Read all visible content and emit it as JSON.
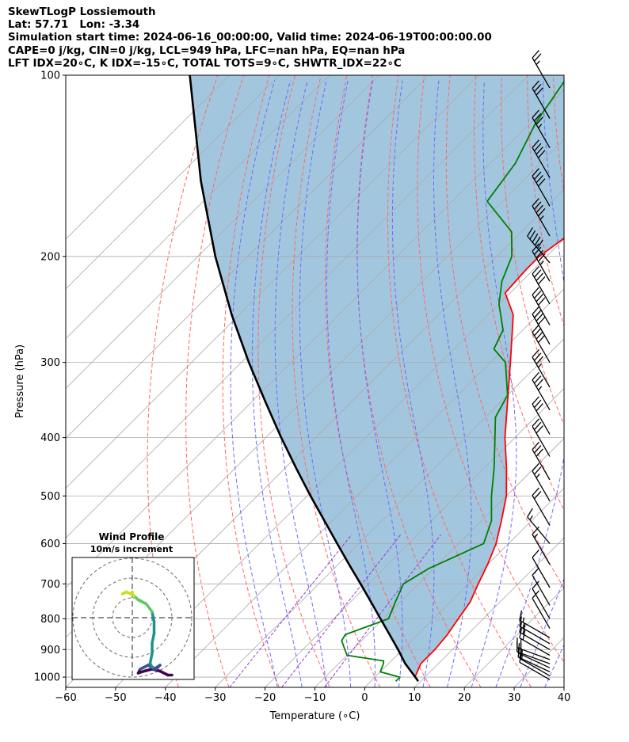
{
  "header": {
    "lines": [
      "SkewTLogP Lossiemouth",
      "Lat: 57.71   Lon: -3.34",
      "Simulation start time: 2024-06-16_00:00:00, Valid time: 2024-06-19T00:00:00.00",
      "CAPE=0 j/kg, CIN=0 j/kg, LCL=949 hPa, LFC=nan hPa, EQ=nan hPa",
      "LFT IDX=20∘C, K IDX=-15∘C, TOTAL TOTS=9∘C, SHWTR_IDX=22∘C"
    ]
  },
  "colors": {
    "temperature": "#ff0000",
    "dewpoint": "#008000",
    "parcel": "#000000",
    "cape_shading": "#a3c6df",
    "dry_adiabat": "#ff6666",
    "moist_adiabat": "#6b6bff",
    "mixing_ratio": "#9b3ad6",
    "isotherm": "#aaaaaa",
    "hodo_palette": [
      "#440154",
      "#3b528b",
      "#21918c",
      "#5ec962",
      "#c8e020"
    ]
  },
  "chart_data": [
    {
      "type": "line",
      "subtype": "skew-t-log-p",
      "xlabel": "Temperature (∘C)",
      "ylabel": "Pressure (hPa)",
      "xlim": [
        -60,
        40
      ],
      "ylim": [
        1040,
        100
      ],
      "yscale": "log",
      "xticks": [
        "−60",
        "−50",
        "−40",
        "−30",
        "−20",
        "−10",
        "0",
        "10",
        "20",
        "30",
        "40"
      ],
      "yticks": [
        100,
        200,
        300,
        400,
        500,
        600,
        700,
        800,
        900,
        1000
      ],
      "series": [
        {
          "key": "temperature",
          "points": [
            [
              1016,
              9.5
            ],
            [
              1000,
              8.0
            ],
            [
              950,
              6.5
            ],
            [
              900,
              6.5
            ],
            [
              850,
              6.0
            ],
            [
              800,
              5.0
            ],
            [
              750,
              4.0
            ],
            [
              700,
              2.0
            ],
            [
              650,
              0
            ],
            [
              600,
              -2.5
            ],
            [
              550,
              -6.0
            ],
            [
              500,
              -10.0
            ],
            [
              450,
              -15.5
            ],
            [
              400,
              -22.0
            ],
            [
              350,
              -28.5
            ],
            [
              300,
              -36.0
            ],
            [
              250,
              -45.0
            ],
            [
              230,
              -51.0
            ],
            [
              210,
              -51.5
            ],
            [
              200,
              -51.5
            ],
            [
              185,
              -50.0
            ],
            [
              170,
              -50.5
            ],
            [
              150,
              -53.0
            ],
            [
              130,
              -56.0
            ],
            [
              115,
              -58.5
            ],
            [
              100,
              -61.0
            ]
          ]
        },
        {
          "key": "dewpoint",
          "points": [
            [
              1016,
              5.0
            ],
            [
              1000,
              5.0
            ],
            [
              980,
              0
            ],
            [
              950,
              -1.0
            ],
            [
              940,
              -1.5
            ],
            [
              920,
              -10.0
            ],
            [
              870,
              -14.0
            ],
            [
              850,
              -14.5
            ],
            [
              800,
              -9.0
            ],
            [
              750,
              -11.0
            ],
            [
              700,
              -13.0
            ],
            [
              660,
              -11.0
            ],
            [
              600,
              -5.0
            ],
            [
              550,
              -8.0
            ],
            [
              500,
              -13.0
            ],
            [
              450,
              -18.0
            ],
            [
              400,
              -24.0
            ],
            [
              370,
              -28.0
            ],
            [
              340,
              -30.0
            ],
            [
              300,
              -37.0
            ],
            [
              285,
              -42.0
            ],
            [
              265,
              -44.0
            ],
            [
              240,
              -50.0
            ],
            [
              220,
              -54.0
            ],
            [
              200,
              -57.0
            ],
            [
              182,
              -62.0
            ],
            [
              162,
              -73.0
            ],
            [
              140,
              -75.0
            ],
            [
              120,
              -79.0
            ],
            [
              100,
              -82.0
            ]
          ]
        },
        {
          "key": "parcel",
          "points": [
            [
              1016,
              9.5
            ],
            [
              1000,
              8.1
            ],
            [
              970,
              5.3
            ],
            [
              949,
              3.3
            ],
            [
              900,
              -0.9
            ],
            [
              850,
              -5.6
            ],
            [
              800,
              -10.6
            ],
            [
              750,
              -15.9
            ],
            [
              700,
              -21.6
            ],
            [
              650,
              -27.8
            ],
            [
              600,
              -34.4
            ],
            [
              550,
              -41.5
            ],
            [
              500,
              -49.3
            ],
            [
              450,
              -57.7
            ],
            [
              400,
              -66.9
            ],
            [
              350,
              -77.0
            ],
            [
              300,
              -88.5
            ],
            [
              250,
              -101.5
            ],
            [
              200,
              -116.5
            ],
            [
              150,
              -134.5
            ],
            [
              100,
              -158.0
            ]
          ]
        }
      ],
      "wind_barbs": {
        "pressures": [
          1010,
          995,
          980,
          965,
          950,
          935,
          920,
          900,
          880,
          860,
          830,
          800,
          760,
          710,
          650,
          600,
          560,
          510,
          470,
          430,
          395,
          360,
          330,
          300,
          280,
          260,
          240,
          220,
          205,
          185,
          165,
          148,
          132,
          118,
          105
        ],
        "speeds_kt": [
          10,
          10,
          15,
          15,
          20,
          20,
          20,
          20,
          15,
          15,
          10,
          10,
          10,
          10,
          15,
          15,
          20,
          25,
          30,
          30,
          30,
          35,
          35,
          40,
          40,
          40,
          40,
          45,
          50,
          45,
          40,
          40,
          35,
          30,
          25
        ],
        "directions_deg": [
          300,
          300,
          295,
          295,
          290,
          290,
          300,
          300,
          300,
          300,
          330,
          330,
          330,
          330,
          330,
          320,
          330,
          330,
          330,
          330,
          330,
          330,
          330,
          330,
          330,
          330,
          330,
          330,
          320,
          330,
          330,
          330,
          330,
          330,
          330
        ]
      }
    },
    {
      "type": "line",
      "subtype": "hodograph",
      "title": "Wind Profile",
      "subtitle": "10m/s increment",
      "ring_increment_ms": 10,
      "rings": 3,
      "points_ms": [
        [
          20,
          -29
        ],
        [
          18,
          -29
        ],
        [
          14,
          -27
        ],
        [
          10,
          -26
        ],
        [
          6,
          -27
        ],
        [
          3,
          -28
        ],
        [
          4,
          -26
        ],
        [
          8,
          -24
        ],
        [
          11,
          -26
        ],
        [
          14,
          -24
        ],
        [
          12,
          -26
        ],
        [
          10,
          -25
        ],
        [
          9,
          -23
        ],
        [
          10,
          -18
        ],
        [
          10,
          -13
        ],
        [
          11,
          -8
        ],
        [
          11,
          -2
        ],
        [
          10,
          3
        ],
        [
          7,
          7
        ],
        [
          5,
          8
        ],
        [
          3,
          9
        ],
        [
          2,
          10
        ],
        [
          1,
          11
        ],
        [
          0,
          12
        ],
        [
          0,
          13
        ],
        [
          -1,
          12
        ],
        [
          -3,
          13
        ],
        [
          -5,
          12
        ]
      ]
    }
  ]
}
